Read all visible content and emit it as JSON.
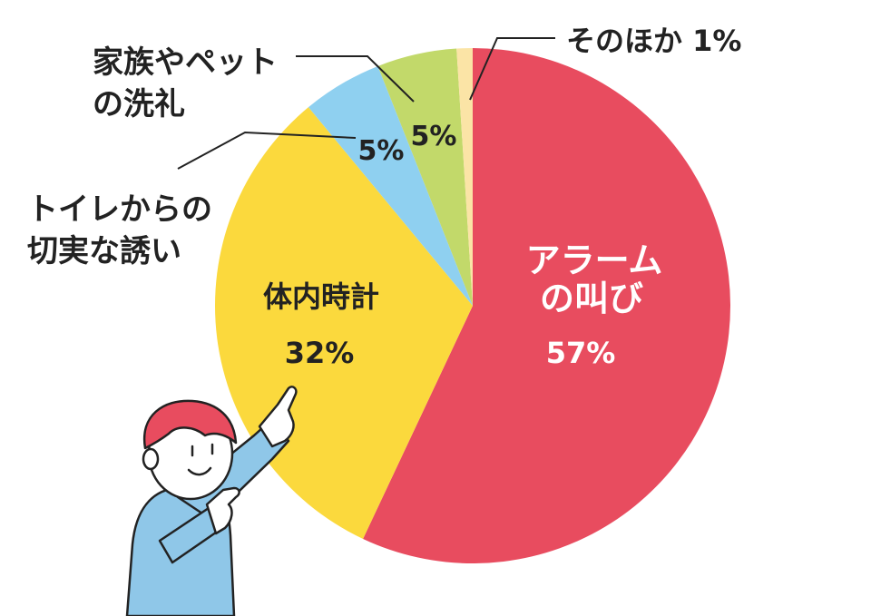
{
  "chart_data": {
    "type": "pie",
    "slices": [
      {
        "label": "アラームの叫び",
        "label_lines": [
          "アラーム",
          "の叫び"
        ],
        "value_text": "57%",
        "value": 57,
        "color": "#e84c5f",
        "text_color": "#ffffff"
      },
      {
        "label": "体内時計",
        "label_lines": [
          "体内時計"
        ],
        "value_text": "32%",
        "value": 32,
        "color": "#fbd93d",
        "text_color": "#222222"
      },
      {
        "label": "トイレからの切実な誘い",
        "label_lines": [
          "トイレからの",
          "切実な誘い"
        ],
        "value_text": "5%",
        "value": 5,
        "color": "#8fd0f0",
        "text_color": "#222222"
      },
      {
        "label": "家族やペットの洗礼",
        "label_lines": [
          "家族やペット",
          "の洗礼"
        ],
        "value_text": "5%",
        "value": 5,
        "color": "#c2d96a",
        "text_color": "#222222"
      },
      {
        "label": "そのほか",
        "label_lines": [
          "そのほか 1%"
        ],
        "value_text": "",
        "value": 1,
        "color": "#fbe4a6",
        "text_color": "#222222"
      }
    ],
    "start_angle_deg": 0,
    "direction": "clockwise"
  },
  "illustration": {
    "name": "pointing-person",
    "hair_color": "#e84c5f",
    "shirt_color": "#8fc7e8"
  }
}
